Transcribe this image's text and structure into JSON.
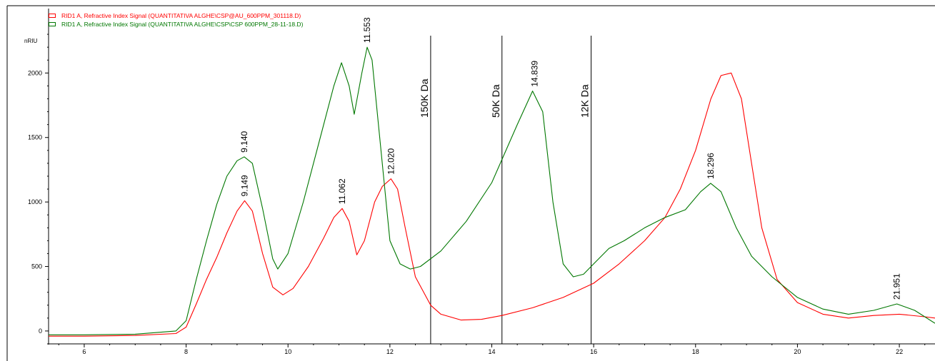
{
  "chart_data": {
    "type": "line",
    "xlabel": "",
    "ylabel": "nRIU",
    "xlim": [
      5.3,
      22.7
    ],
    "ylim": [
      -100,
      2400
    ],
    "xticks": [
      6,
      8,
      10,
      12,
      14,
      16,
      18,
      20,
      22
    ],
    "yticks": [
      0,
      500,
      1000,
      1500,
      2000
    ],
    "grid": false,
    "legend_position": "top-left",
    "series": [
      {
        "name": "RID1 A, Refractive Index Signal (QUANTITATIVA ALGHE\\CSP@AU_600PPM_301118.D)",
        "color": "#ff0000",
        "x": [
          5.3,
          6,
          7,
          7.8,
          8,
          8.2,
          8.4,
          8.6,
          8.8,
          9.0,
          9.149,
          9.3,
          9.5,
          9.7,
          9.9,
          10.1,
          10.4,
          10.7,
          10.9,
          11.062,
          11.2,
          11.35,
          11.5,
          11.7,
          11.85,
          12.02,
          12.15,
          12.3,
          12.5,
          12.8,
          13.0,
          13.4,
          13.8,
          14.2,
          14.8,
          15.4,
          16.0,
          16.5,
          17.0,
          17.4,
          17.7,
          18.0,
          18.3,
          18.5,
          18.7,
          18.9,
          19.1,
          19.3,
          19.6,
          20.0,
          20.5,
          21.0,
          21.5,
          22.0,
          22.5,
          22.7
        ],
        "y": [
          -40,
          -40,
          -35,
          -20,
          30,
          210,
          400,
          570,
          760,
          930,
          1010,
          930,
          600,
          340,
          280,
          330,
          500,
          720,
          880,
          950,
          850,
          590,
          700,
          1000,
          1120,
          1180,
          1100,
          800,
          420,
          200,
          130,
          85,
          90,
          120,
          180,
          260,
          370,
          520,
          700,
          880,
          1100,
          1400,
          1800,
          1980,
          2000,
          1800,
          1300,
          800,
          400,
          220,
          130,
          100,
          120,
          130,
          110,
          100
        ]
      },
      {
        "name": "RID1 A, Refractive Index Signal (QUANTITATIVA ALGHE\\CSP\\CSP 600PPM_28-11-18.D)",
        "color": "#007700",
        "x": [
          5.3,
          6,
          7,
          7.8,
          8,
          8.2,
          8.4,
          8.6,
          8.8,
          9.0,
          9.14,
          9.3,
          9.5,
          9.7,
          9.8,
          10.0,
          10.3,
          10.6,
          10.9,
          11.05,
          11.2,
          11.3,
          11.45,
          11.553,
          11.65,
          11.8,
          12.0,
          12.2,
          12.4,
          12.6,
          13.0,
          13.5,
          14.0,
          14.5,
          14.8,
          15.0,
          15.2,
          15.4,
          15.6,
          15.8,
          16.0,
          16.3,
          16.6,
          17.0,
          17.4,
          17.8,
          18.1,
          18.296,
          18.5,
          18.8,
          19.1,
          19.5,
          20.0,
          20.5,
          21.0,
          21.5,
          21.951,
          22.3,
          22.7
        ],
        "y": [
          -30,
          -30,
          -25,
          0,
          80,
          400,
          700,
          980,
          1200,
          1320,
          1350,
          1300,
          950,
          560,
          480,
          600,
          1000,
          1450,
          1900,
          2080,
          1900,
          1680,
          2000,
          2200,
          2100,
          1500,
          700,
          520,
          480,
          500,
          620,
          850,
          1150,
          1600,
          1860,
          1700,
          1000,
          520,
          420,
          440,
          520,
          640,
          700,
          800,
          880,
          940,
          1080,
          1145,
          1080,
          800,
          580,
          420,
          260,
          170,
          130,
          160,
          210,
          160,
          60
        ]
      }
    ],
    "annotations": [
      {
        "text": "9.149",
        "x": 9.149,
        "y": 1010
      },
      {
        "text": "9.140",
        "x": 9.14,
        "y": 1350
      },
      {
        "text": "11.062",
        "x": 11.062,
        "y": 950
      },
      {
        "text": "11.553",
        "x": 11.553,
        "y": 2200
      },
      {
        "text": "12.020",
        "x": 12.02,
        "y": 1180
      },
      {
        "text": "14.839",
        "x": 14.839,
        "y": 1860
      },
      {
        "text": "18.296",
        "x": 18.296,
        "y": 1145
      },
      {
        "text": "21.951",
        "x": 21.951,
        "y": 210
      }
    ],
    "markers": [
      {
        "label": "150K Da",
        "x": 12.8
      },
      {
        "label": "50K Da",
        "x": 14.2
      },
      {
        "label": "12K Da",
        "x": 15.95
      }
    ]
  }
}
